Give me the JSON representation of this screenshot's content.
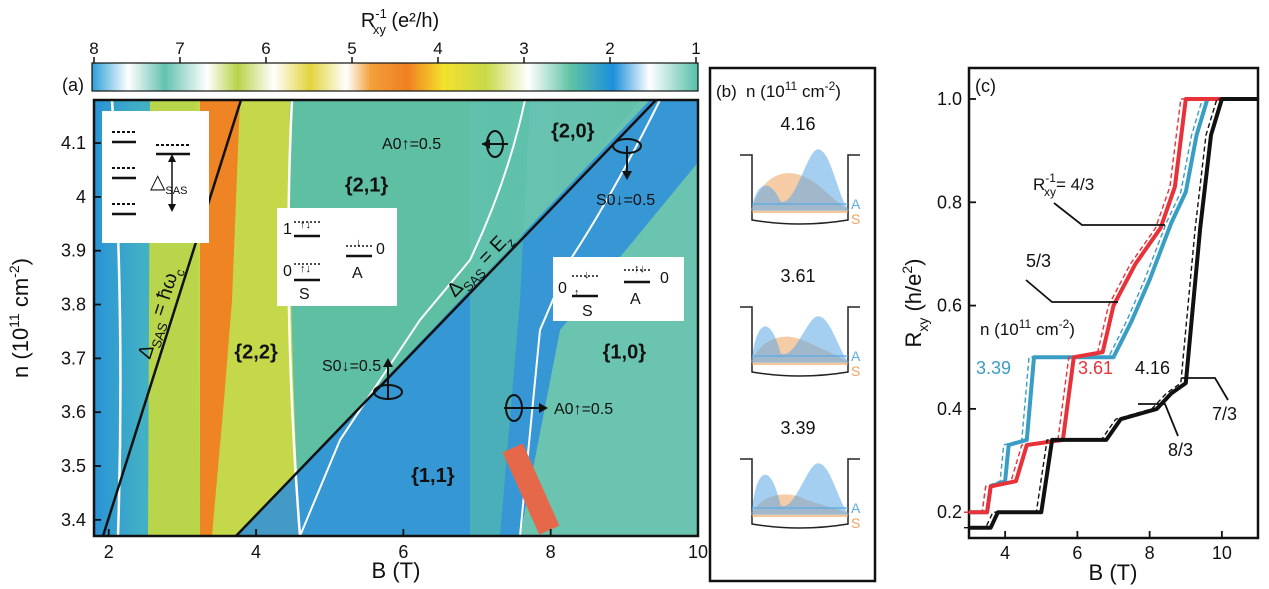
{
  "chart_data": [
    {
      "panel": "(a)",
      "type": "heatmap",
      "colorbar": {
        "title": "R",
        "title_sub": "xy",
        "title_sup": "-1",
        "title_unit": " (e²/h)",
        "ticks": [
          "8",
          "7",
          "6",
          "5",
          "4",
          "3",
          "2",
          "1"
        ]
      },
      "xlabel": "B (T)",
      "ylabel_main": "n (10",
      "ylabel_sup": "11",
      "ylabel_unit": " cm",
      "ylabel_sup2": "-2",
      "ylabel_end": ")",
      "xlim": [
        1.8,
        10
      ],
      "ylim": [
        3.37,
        4.18
      ],
      "xticks": [
        2,
        4,
        6,
        8,
        10
      ],
      "xtick_labels": [
        "2",
        "4",
        "6",
        "8",
        "10"
      ],
      "yticks": [
        3.4,
        3.5,
        3.6,
        3.7,
        3.8,
        3.9,
        4.0,
        4.1
      ],
      "ytick_labels": [
        "3.4",
        "3.5",
        "3.6",
        "3.7",
        "3.8",
        "3.9",
        "4",
        "4.1"
      ],
      "regions": [
        "{2,0}",
        "{2,1}",
        "{2,2}",
        "{1,0}",
        "{1,1}"
      ],
      "annotations": [
        "A0↑=0.5",
        "S0↓=0.5",
        "S0↓=0.5",
        "A0↑=0.5"
      ],
      "line_labels": [
        "Δ",
        "SAS",
        " = ħω",
        "c",
        "Δ",
        "SAS",
        " = E",
        "z"
      ],
      "inset_labels": [
        "△",
        "SAS",
        "1",
        "0",
        "0",
        "S",
        "A",
        "0",
        "0",
        "S",
        "A",
        "0"
      ]
    },
    {
      "panel": "(b)",
      "type": "area",
      "title": "n (10",
      "title_sup": "11",
      "title_unit": " cm",
      "title_sup2": "-2",
      "title_end": ")",
      "densities": [
        "4.16",
        "3.61",
        "3.39"
      ],
      "series": [
        {
          "name": "A",
          "color": "#5aa9e6"
        },
        {
          "name": "S",
          "color": "#f0a35e"
        }
      ]
    },
    {
      "panel": "(c)",
      "type": "line",
      "xlabel": "B (T)",
      "ylabel": "R",
      "ylabel_sub": "xy",
      "ylabel_unit": " (h/e",
      "ylabel_sup": "2",
      "ylabel_end": ")",
      "xlim": [
        3,
        11
      ],
      "ylim": [
        0.15,
        1.06
      ],
      "xticks": [
        4,
        6,
        8,
        10
      ],
      "xtick_labels": [
        "4",
        "6",
        "8",
        "10"
      ],
      "yticks": [
        0.2,
        0.4,
        0.6,
        0.8,
        1.0
      ],
      "ytick_labels": [
        "0.2",
        "0.4",
        "0.6",
        "0.8",
        "1.0"
      ],
      "legend_title": "n (10",
      "legend_sup": "11",
      "legend_unit": " cm",
      "legend_sup2": "-2",
      "legend_end": ")",
      "annotations": {
        "r43_pre": "R",
        "r43_sub": "xy",
        "r43_sup": "-1",
        "r43_post": "= 4/3",
        "r53": "5/3",
        "r73": "7/3",
        "r83": "8/3"
      },
      "series": [
        {
          "name": "3.39",
          "color": "#3a9dc4",
          "x": [
            3.0,
            3.5,
            3.6,
            4.0,
            4.1,
            4.6,
            4.8,
            7.0,
            7.5,
            8.0,
            8.6,
            9.0,
            9.3,
            9.6,
            11
          ],
          "y": [
            0.2,
            0.2,
            0.25,
            0.26,
            0.33,
            0.34,
            0.5,
            0.5,
            0.57,
            0.65,
            0.76,
            0.82,
            0.93,
            1.0,
            1.0
          ]
        },
        {
          "name": "3.61",
          "color": "#e8323a",
          "x": [
            3.0,
            3.5,
            3.6,
            4.3,
            4.6,
            5.6,
            5.9,
            6.7,
            7.0,
            7.6,
            8.3,
            8.7,
            9.0,
            11
          ],
          "y": [
            0.2,
            0.2,
            0.25,
            0.26,
            0.33,
            0.34,
            0.5,
            0.51,
            0.6,
            0.68,
            0.75,
            0.83,
            1.0,
            1.0
          ]
        },
        {
          "name": "4.16",
          "color": "#111111",
          "x": [
            3.0,
            3.6,
            3.8,
            5.0,
            5.3,
            6.8,
            7.2,
            8.2,
            8.6,
            9.0,
            9.4,
            9.7,
            10.0,
            11
          ],
          "y": [
            0.17,
            0.17,
            0.2,
            0.2,
            0.34,
            0.34,
            0.38,
            0.4,
            0.43,
            0.45,
            0.75,
            0.93,
            1.0,
            1.0
          ]
        }
      ]
    }
  ]
}
